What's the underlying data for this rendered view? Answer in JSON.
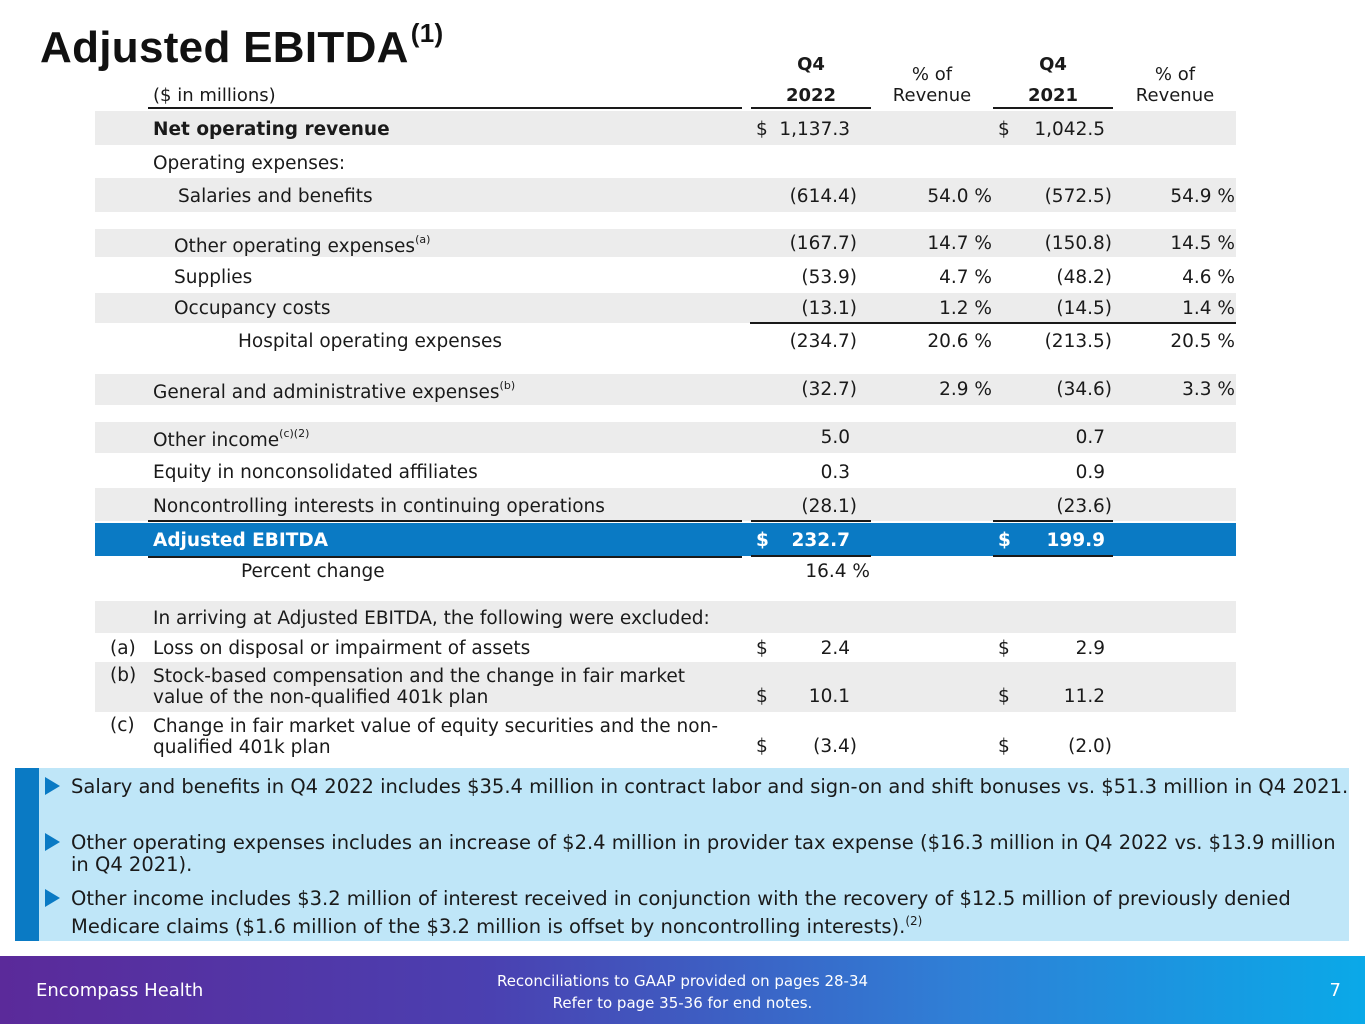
{
  "title": {
    "text": "Adjusted EBITDA",
    "sup": "(1)"
  },
  "header": {
    "units": "($ in millions)",
    "col1_q": "Q4",
    "col1_year": "2022",
    "col2_pct_l1": "% of",
    "col2_pct_l2": "Revenue",
    "col3_q": "Q4",
    "col3_year": "2021",
    "col4_pct_l1": "% of",
    "col4_pct_l2": "Revenue"
  },
  "rows": {
    "net_revenue": {
      "label": "Net operating revenue",
      "sym1": "$",
      "v2022": "1,137.3",
      "sym2": "$",
      "v2021": "1,042.5"
    },
    "opex_header": {
      "label": "Operating expenses:"
    },
    "salaries": {
      "label": "Salaries and benefits",
      "v2022": "(614.4)",
      "p2022": "54.0 %",
      "v2021": "(572.5)",
      "p2021": "54.9 %"
    },
    "other_opex": {
      "label": "Other operating expenses",
      "sup": "(a)",
      "v2022": "(167.7)",
      "p2022": "14.7 %",
      "v2021": "(150.8)",
      "p2021": "14.5 %"
    },
    "supplies": {
      "label": "Supplies",
      "v2022": "(53.9)",
      "p2022": "4.7 %",
      "v2021": "(48.2)",
      "p2021": "4.6 %"
    },
    "occupancy": {
      "label": "Occupancy costs",
      "v2022": "(13.1)",
      "p2022": "1.2 %",
      "v2021": "(14.5)",
      "p2021": "1.4 %"
    },
    "hospital_opex": {
      "label": "Hospital operating expenses",
      "v2022": "(234.7)",
      "p2022": "20.6 %",
      "v2021": "(213.5)",
      "p2021": "20.5 %"
    },
    "g_and_a": {
      "label": "General and administrative expenses",
      "sup": "(b)",
      "v2022": "(32.7)",
      "p2022": "2.9 %",
      "v2021": "(34.6)",
      "p2021": "3.3 %"
    },
    "other_income": {
      "label": "Other income",
      "sup": "(c)(2)",
      "v2022": "5.0",
      "v2021": "0.7"
    },
    "equity_affiliates": {
      "label": "Equity in nonconsolidated affiliates",
      "v2022": "0.3",
      "v2021": "0.9"
    },
    "nci": {
      "label": "Noncontrolling interests in continuing operations",
      "v2022": "(28.1)",
      "v2021": "(23.6)"
    },
    "adj_ebitda": {
      "label": "Adjusted EBITDA",
      "sym1": "$",
      "v2022": "232.7",
      "sym2": "$",
      "v2021": "199.9"
    },
    "pct_change": {
      "label": "Percent change",
      "v2022": "16.4 %"
    },
    "excluded_header": {
      "label": "In arriving at Adjusted EBITDA, the following were excluded:"
    },
    "excl_a": {
      "key": "(a)",
      "label": "Loss on disposal or impairment of assets",
      "sym1": "$",
      "v2022": "2.4",
      "sym2": "$",
      "v2021": "2.9"
    },
    "excl_b": {
      "key": "(b)",
      "label_l1": "Stock-based compensation and the change in fair market",
      "label_l2": "value of the non-qualified 401k plan",
      "sym1": "$",
      "v2022": "10.1",
      "sym2": "$",
      "v2021": "11.2"
    },
    "excl_c": {
      "key": "(c)",
      "label_l1": "Change in fair market value of equity securities and the non-",
      "label_l2": "qualified 401k plan",
      "sym1": "$",
      "v2022": "(3.4)",
      "sym2": "$",
      "v2021": "(2.0)"
    }
  },
  "bullets": {
    "b1": "Salary and benefits in Q4 2022 includes $35.4 million in contract labor and sign-on and shift bonuses vs. $51.3 million in Q4 2021.",
    "b2": "Other operating expenses includes an increase of $2.4 million in provider tax expense ($16.3 million in Q4 2022 vs. $13.9 million in Q4 2021).",
    "b3": "Other income includes $3.2 million of interest received in conjunction with the recovery of $12.5 million of previously denied Medicare claims ($1.6 million of the $3.2 million is offset by noncontrolling interests).",
    "b3_sup": "(2)"
  },
  "footer": {
    "brand": "Encompass Health",
    "note_l1": "Reconciliations to GAAP provided on pages 28-34",
    "note_l2": "Refer to page 35-36 for end notes.",
    "page": "7"
  },
  "colors": {
    "accent_blue": "#0a7ac4",
    "bullet_bg": "#bfe6f8",
    "row_shade": "#ececec"
  }
}
